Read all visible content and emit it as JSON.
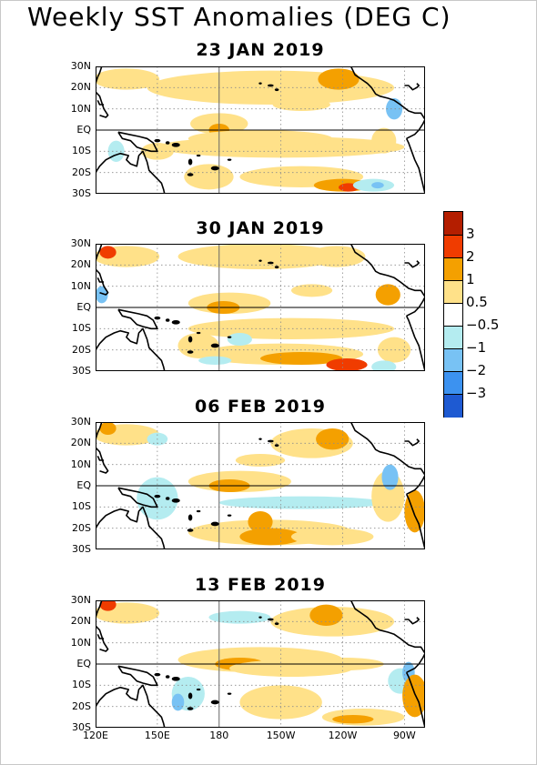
{
  "title": "Weekly SST Anomalies (DEG C)",
  "panels": [
    {
      "date": "23 JAN 2019"
    },
    {
      "date": "30 JAN 2019"
    },
    {
      "date": "06 FEB 2019"
    },
    {
      "date": "13 FEB 2019"
    }
  ],
  "map": {
    "lon_range": [
      120,
      280
    ],
    "lat_range": [
      -30,
      30
    ],
    "lat_labels": [
      "30N",
      "20N",
      "10N",
      "EQ",
      "10S",
      "20S",
      "30S"
    ],
    "lon_labels": [
      "120E",
      "150E",
      "180",
      "150W",
      "120W",
      "90W"
    ],
    "reference_lines": [
      "equator",
      "dateline"
    ]
  },
  "legend": {
    "labels": [
      "3",
      "2",
      "1",
      "0.5",
      "−0.5",
      "−1",
      "−2",
      "−3"
    ],
    "colors": [
      "#b41e00",
      "#f03c00",
      "#f4a000",
      "#ffe189",
      "#ffffff",
      "#b4ecf0",
      "#78c2f4",
      "#3c92f0",
      "#1e5ad2"
    ]
  },
  "colors": {
    "coast": "#000000",
    "grid": "#8c8c8c",
    "frame_border": "#c8c8c8"
  }
}
